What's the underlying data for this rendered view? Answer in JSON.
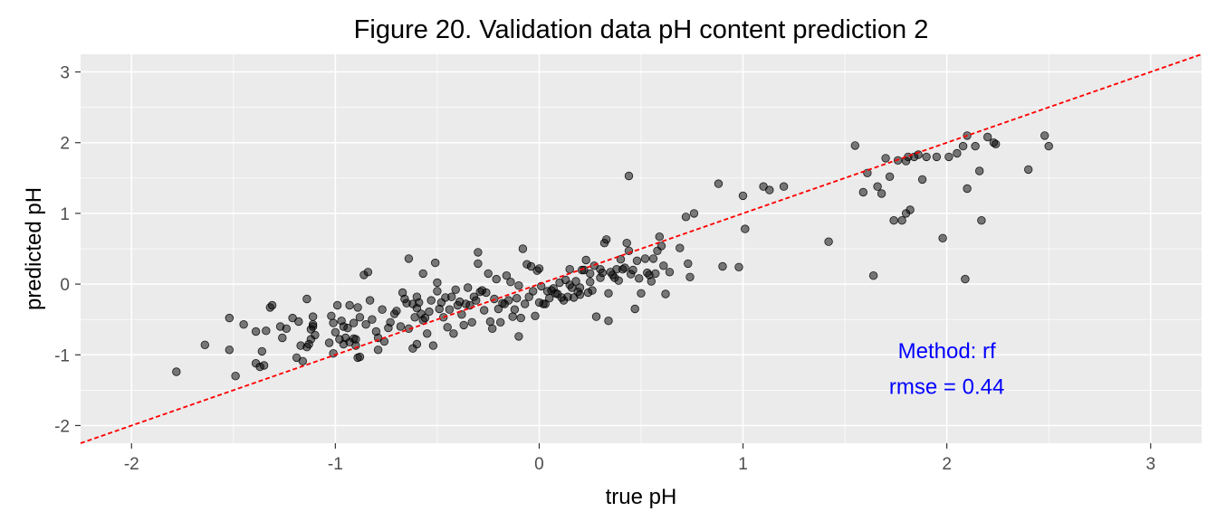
{
  "chart_data": {
    "type": "scatter",
    "title": "Figure 20.  Validation data pH content prediction 2",
    "xlabel": "true pH",
    "ylabel": "predicted pH",
    "xlim": [
      -2.25,
      3.25
    ],
    "ylim": [
      -2.25,
      3.25
    ],
    "x_ticks": [
      "-2",
      "-1",
      "0",
      "1",
      "2",
      "3"
    ],
    "y_ticks": [
      "-2",
      "-1",
      "0",
      "1",
      "2",
      "3"
    ],
    "grid": true,
    "panel_background": "#ebebeb",
    "point_color": "#000000",
    "point_opacity": 0.5,
    "reference_line": {
      "type": "identity",
      "slope": 1,
      "intercept": 0,
      "style": "dashed",
      "color": "#ff0000"
    },
    "annotations": [
      {
        "text": "Method: rf",
        "x": 2.0,
        "y": -1.05,
        "color": "#0000ff"
      },
      {
        "text": "rmse = 0.44",
        "x": 2.0,
        "y": -1.55,
        "color": "#0000ff"
      }
    ],
    "points": [
      [
        -1.78,
        -1.24
      ],
      [
        -1.64,
        -0.86
      ],
      [
        -1.52,
        -0.48
      ],
      [
        -1.52,
        -0.93
      ],
      [
        -1.49,
        -1.3
      ],
      [
        -1.45,
        -0.57
      ],
      [
        -1.39,
        -0.67
      ],
      [
        -1.39,
        -1.12
      ],
      [
        -1.37,
        -1.17
      ],
      [
        -1.36,
        -0.95
      ],
      [
        -1.35,
        -1.15
      ],
      [
        -1.34,
        -0.66
      ],
      [
        -1.32,
        -0.33
      ],
      [
        -1.31,
        -0.3
      ],
      [
        -1.27,
        -0.6
      ],
      [
        -1.26,
        -0.76
      ],
      [
        -1.24,
        -0.63
      ],
      [
        -1.21,
        -0.48
      ],
      [
        -1.19,
        -1.04
      ],
      [
        -1.18,
        -0.53
      ],
      [
        -1.17,
        -0.87
      ],
      [
        -1.16,
        -1.09
      ],
      [
        -1.14,
        -0.89
      ],
      [
        -1.14,
        -0.21
      ],
      [
        -1.13,
        -0.85
      ],
      [
        -1.12,
        -0.78
      ],
      [
        -1.12,
        -0.64
      ],
      [
        -1.11,
        -0.6
      ],
      [
        -1.11,
        -0.46
      ],
      [
        -1.11,
        -0.57
      ],
      [
        -1.1,
        -0.72
      ],
      [
        -1.03,
        -0.83
      ],
      [
        -1.02,
        -0.45
      ],
      [
        -1.01,
        -0.55
      ],
      [
        -1.01,
        -0.98
      ],
      [
        -1.0,
        -0.68
      ],
      [
        -0.99,
        -0.3
      ],
      [
        -0.98,
        -0.78
      ],
      [
        -0.97,
        -0.52
      ],
      [
        -0.96,
        -0.6
      ],
      [
        -0.96,
        -0.85
      ],
      [
        -0.95,
        -0.76
      ],
      [
        -0.94,
        -0.62
      ],
      [
        -0.93,
        -0.3
      ],
      [
        -0.93,
        -0.82
      ],
      [
        -0.91,
        -0.77
      ],
      [
        -0.91,
        -0.55
      ],
      [
        -0.9,
        -0.87
      ],
      [
        -0.9,
        -0.78
      ],
      [
        -0.89,
        -0.33
      ],
      [
        -0.89,
        -1.04
      ],
      [
        -0.88,
        -1.03
      ],
      [
        -0.88,
        -0.47
      ],
      [
        -0.86,
        0.13
      ],
      [
        -0.85,
        -0.57
      ],
      [
        -0.84,
        0.17
      ],
      [
        -0.83,
        -0.23
      ],
      [
        -0.82,
        -0.5
      ],
      [
        -0.8,
        -0.67
      ],
      [
        -0.79,
        -0.93
      ],
      [
        -0.79,
        -0.76
      ],
      [
        -0.77,
        -0.36
      ],
      [
        -0.76,
        -0.81
      ],
      [
        -0.74,
        -0.62
      ],
      [
        -0.73,
        -0.54
      ],
      [
        -0.71,
        -0.42
      ],
      [
        -0.7,
        -0.38
      ],
      [
        -0.68,
        -0.6
      ],
      [
        -0.67,
        -0.12
      ],
      [
        -0.66,
        -0.21
      ],
      [
        -0.65,
        -0.27
      ],
      [
        -0.64,
        0.36
      ],
      [
        -0.64,
        -0.63
      ],
      [
        -0.62,
        -0.28
      ],
      [
        -0.62,
        -0.91
      ],
      [
        -0.61,
        -0.47
      ],
      [
        -0.6,
        -0.34
      ],
      [
        -0.6,
        -0.18
      ],
      [
        -0.6,
        -0.85
      ],
      [
        -0.59,
        -0.26
      ],
      [
        -0.58,
        -0.42
      ],
      [
        -0.57,
        0.15
      ],
      [
        -0.57,
        -0.51
      ],
      [
        -0.56,
        -0.48
      ],
      [
        -0.55,
        -0.7
      ],
      [
        -0.54,
        -0.39
      ],
      [
        -0.53,
        -0.23
      ],
      [
        -0.52,
        -0.87
      ],
      [
        -0.51,
        0.3
      ],
      [
        -0.5,
        0.02
      ],
      [
        -0.5,
        -0.1
      ],
      [
        -0.49,
        -0.35
      ],
      [
        -0.48,
        -0.26
      ],
      [
        -0.47,
        -0.47
      ],
      [
        -0.46,
        -0.19
      ],
      [
        -0.45,
        -0.61
      ],
      [
        -0.44,
        -0.36
      ],
      [
        -0.43,
        -0.18
      ],
      [
        -0.42,
        -0.7
      ],
      [
        -0.41,
        -0.08
      ],
      [
        -0.4,
        -0.3
      ],
      [
        -0.39,
        -0.25
      ],
      [
        -0.38,
        -0.43
      ],
      [
        -0.37,
        -0.58
      ],
      [
        -0.36,
        -0.28
      ],
      [
        -0.35,
        -0.05
      ],
      [
        -0.34,
        -0.3
      ],
      [
        -0.33,
        -0.54
      ],
      [
        -0.32,
        -0.18
      ],
      [
        -0.31,
        -0.23
      ],
      [
        -0.3,
        0.45
      ],
      [
        -0.3,
        0.29
      ],
      [
        -0.29,
        -0.11
      ],
      [
        -0.28,
        -0.09
      ],
      [
        -0.27,
        -0.37
      ],
      [
        -0.26,
        -0.12
      ],
      [
        -0.25,
        0.15
      ],
      [
        -0.24,
        -0.53
      ],
      [
        -0.23,
        -0.63
      ],
      [
        -0.22,
        -0.21
      ],
      [
        -0.21,
        0.07
      ],
      [
        -0.2,
        -0.35
      ],
      [
        -0.19,
        -0.54
      ],
      [
        -0.18,
        -0.27
      ],
      [
        -0.17,
        -0.28
      ],
      [
        -0.16,
        0.12
      ],
      [
        -0.15,
        -0.23
      ],
      [
        -0.14,
        0.03
      ],
      [
        -0.13,
        -0.46
      ],
      [
        -0.12,
        -0.36
      ],
      [
        -0.11,
        -0.2
      ],
      [
        -0.1,
        -0.02
      ],
      [
        -0.1,
        -0.74
      ],
      [
        -0.09,
        -0.48
      ],
      [
        -0.08,
        0.5
      ],
      [
        -0.07,
        -0.28
      ],
      [
        -0.06,
        0.28
      ],
      [
        -0.05,
        -0.18
      ],
      [
        -0.04,
        0.25
      ],
      [
        -0.03,
        -0.1
      ],
      [
        -0.02,
        -0.45
      ],
      [
        -0.01,
        0.19
      ],
      [
        0.0,
        0.22
      ],
      [
        0.0,
        -0.26
      ],
      [
        0.01,
        -0.03
      ],
      [
        0.02,
        -0.28
      ],
      [
        0.03,
        -0.28
      ],
      [
        0.04,
        -0.1
      ],
      [
        0.05,
        -0.2
      ],
      [
        0.06,
        -0.09
      ],
      [
        0.07,
        -0.06
      ],
      [
        0.08,
        -0.13
      ],
      [
        0.09,
        -0.14
      ],
      [
        0.1,
        0.02
      ],
      [
        0.11,
        -0.19
      ],
      [
        0.12,
        -0.23
      ],
      [
        0.13,
        0.06
      ],
      [
        0.14,
        -0.18
      ],
      [
        0.15,
        -0.01
      ],
      [
        0.15,
        0.21
      ],
      [
        0.16,
        -0.05
      ],
      [
        0.17,
        -0.19
      ],
      [
        0.18,
        0.04
      ],
      [
        0.19,
        -0.11
      ],
      [
        0.2,
        -0.05
      ],
      [
        0.2,
        -0.15
      ],
      [
        0.21,
        0.2
      ],
      [
        0.22,
        0.2
      ],
      [
        0.23,
        0.34
      ],
      [
        0.24,
        -0.12
      ],
      [
        0.25,
        0.03
      ],
      [
        0.25,
        0.15
      ],
      [
        0.26,
        -0.09
      ],
      [
        0.27,
        0.26
      ],
      [
        0.28,
        -0.46
      ],
      [
        0.3,
        0.21
      ],
      [
        0.3,
        0.09
      ],
      [
        0.31,
        0.16
      ],
      [
        0.32,
        0.58
      ],
      [
        0.33,
        0.63
      ],
      [
        0.34,
        -0.13
      ],
      [
        0.34,
        -0.52
      ],
      [
        0.35,
        0.17
      ],
      [
        0.36,
        0.13
      ],
      [
        0.37,
        0.09
      ],
      [
        0.38,
        0.21
      ],
      [
        0.39,
        0.05
      ],
      [
        0.4,
        0.35
      ],
      [
        0.41,
        0.21
      ],
      [
        0.42,
        0.23
      ],
      [
        0.43,
        0.58
      ],
      [
        0.44,
        0.47
      ],
      [
        0.44,
        1.53
      ],
      [
        0.45,
        0.14
      ],
      [
        0.46,
        0.2
      ],
      [
        0.47,
        -0.35
      ],
      [
        0.48,
        0.33
      ],
      [
        0.49,
        0.08
      ],
      [
        0.5,
        -0.13
      ],
      [
        0.52,
        0.36
      ],
      [
        0.53,
        0.16
      ],
      [
        0.54,
        0.13
      ],
      [
        0.55,
        0.04
      ],
      [
        0.56,
        0.36
      ],
      [
        0.57,
        0.15
      ],
      [
        0.58,
        0.47
      ],
      [
        0.59,
        0.67
      ],
      [
        0.6,
        0.54
      ],
      [
        0.61,
        0.26
      ],
      [
        0.62,
        -0.14
      ],
      [
        0.64,
        0.17
      ],
      [
        0.69,
        0.51
      ],
      [
        0.72,
        0.95
      ],
      [
        0.73,
        0.29
      ],
      [
        0.74,
        0.1
      ],
      [
        0.76,
        1.0
      ],
      [
        0.88,
        1.42
      ],
      [
        0.9,
        0.25
      ],
      [
        0.98,
        0.24
      ],
      [
        1.0,
        1.25
      ],
      [
        1.01,
        0.78
      ],
      [
        1.1,
        1.38
      ],
      [
        1.13,
        1.33
      ],
      [
        1.2,
        1.38
      ],
      [
        1.42,
        0.6
      ],
      [
        1.55,
        1.96
      ],
      [
        1.59,
        1.3
      ],
      [
        1.61,
        1.57
      ],
      [
        1.64,
        0.12
      ],
      [
        1.66,
        1.38
      ],
      [
        1.68,
        1.28
      ],
      [
        1.7,
        1.78
      ],
      [
        1.72,
        1.52
      ],
      [
        1.74,
        0.9
      ],
      [
        1.76,
        1.75
      ],
      [
        1.78,
        0.9
      ],
      [
        1.8,
        1.0
      ],
      [
        1.8,
        1.74
      ],
      [
        1.81,
        1.8
      ],
      [
        1.82,
        1.05
      ],
      [
        1.84,
        1.8
      ],
      [
        1.86,
        1.83
      ],
      [
        1.88,
        1.48
      ],
      [
        1.9,
        1.8
      ],
      [
        1.95,
        1.8
      ],
      [
        1.98,
        0.65
      ],
      [
        2.01,
        1.8
      ],
      [
        2.05,
        1.85
      ],
      [
        2.08,
        1.95
      ],
      [
        2.09,
        0.07
      ],
      [
        2.1,
        1.35
      ],
      [
        2.1,
        2.1
      ],
      [
        2.14,
        1.95
      ],
      [
        2.16,
        1.6
      ],
      [
        2.17,
        0.9
      ],
      [
        2.2,
        2.08
      ],
      [
        2.23,
        2.0
      ],
      [
        2.24,
        1.98
      ],
      [
        2.4,
        1.62
      ],
      [
        2.48,
        2.1
      ],
      [
        2.5,
        1.95
      ]
    ]
  }
}
